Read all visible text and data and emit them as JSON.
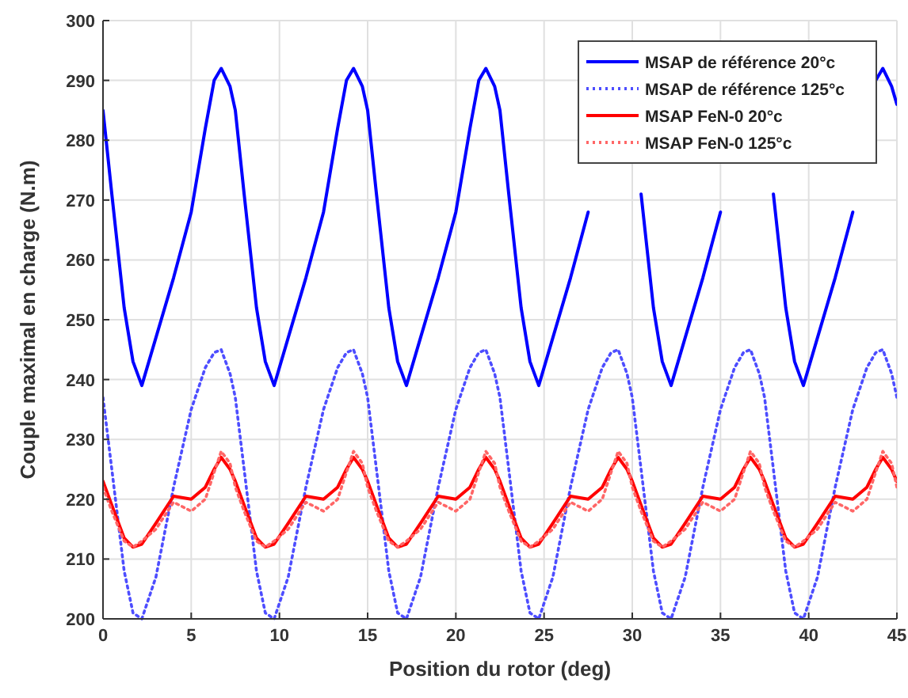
{
  "chart_data": {
    "type": "line",
    "xlabel": "Position du rotor (deg)",
    "ylabel": "Couple maximal en charge (N.m)",
    "x": [
      0,
      0.5,
      1.2,
      1.7,
      2.2,
      3,
      4,
      5,
      5.8,
      6.3,
      6.7,
      7.2,
      7.5,
      8,
      8.7,
      9.2,
      9.7,
      10.5,
      11.5,
      12.5,
      13.3,
      13.8,
      14.2,
      14.7,
      15,
      15.5,
      16.2,
      16.7,
      17.2,
      18,
      19,
      20,
      20.8,
      21.3,
      21.7,
      22.2,
      22.5,
      23,
      23.7,
      24.2,
      24.7,
      25.5,
      26.5,
      27.5,
      28.3,
      28.8,
      29.2,
      29.7,
      30,
      30.5,
      31.2,
      31.7,
      32.2,
      33,
      34,
      35,
      35.8,
      36.3,
      36.7,
      37.2,
      37.5,
      38,
      38.7,
      39.2,
      39.7,
      40.5,
      41.5,
      42.5,
      43.3,
      43.8,
      44.2,
      44.7,
      45
    ],
    "series": [
      {
        "name": "MSAP de référence 20°c",
        "color": "#0000ff",
        "line_style": "solid",
        "values": [
          285,
          271,
          252,
          243,
          239,
          247,
          257,
          268,
          282,
          290,
          292,
          289,
          285,
          271,
          252,
          243,
          239,
          247,
          257,
          268,
          282,
          290,
          292,
          289,
          285,
          271,
          252,
          243,
          239,
          247,
          257,
          268,
          282,
          290,
          292,
          289,
          285,
          271,
          252,
          243,
          239,
          247,
          257,
          268,
          null,
          null,
          null,
          null,
          null,
          271,
          252,
          243,
          239,
          247,
          257,
          268,
          null,
          null,
          null,
          null,
          null,
          271,
          252,
          243,
          239,
          247,
          257,
          268,
          null,
          290,
          292,
          289,
          286
        ]
      },
      {
        "name": "MSAP de référence 125°c",
        "color": "#4d4dff",
        "line_style": "dotted",
        "values": [
          237,
          225,
          208,
          201,
          200,
          207,
          222,
          235,
          242,
          244.5,
          245,
          241,
          237,
          225,
          208,
          201,
          200,
          207,
          222,
          235,
          242,
          244.5,
          245,
          241,
          237,
          225,
          208,
          201,
          200,
          207,
          222,
          235,
          242,
          244.5,
          245,
          241,
          237,
          225,
          208,
          201,
          200,
          207,
          222,
          235,
          242,
          244.5,
          245,
          241,
          237,
          225,
          208,
          201,
          200,
          207,
          222,
          235,
          242,
          244.5,
          245,
          241,
          237,
          225,
          208,
          201,
          200,
          207,
          222,
          235,
          242,
          244.5,
          245,
          241,
          237
        ]
      },
      {
        "name": "MSAP FeN-0 20°c",
        "color": "#ff0000",
        "line_style": "solid",
        "values": [
          223,
          219,
          213.5,
          212,
          212.5,
          216,
          220.5,
          220,
          222,
          225,
          227,
          225,
          223,
          219,
          213.5,
          212,
          212.5,
          216,
          220.5,
          220,
          222,
          225,
          227,
          225,
          223,
          219,
          213.5,
          212,
          212.5,
          216,
          220.5,
          220,
          222,
          225,
          227,
          225,
          223,
          219,
          213.5,
          212,
          212.5,
          216,
          220.5,
          220,
          222,
          225,
          227,
          225,
          223,
          219,
          213.5,
          212,
          212.5,
          216,
          220.5,
          220,
          222,
          225,
          227,
          225,
          223,
          219,
          213.5,
          212,
          212.5,
          216,
          220.5,
          220,
          222,
          225,
          227,
          225,
          223
        ]
      },
      {
        "name": "MSAP FeN-0 125°c",
        "color": "#ff6666",
        "line_style": "dotted",
        "values": [
          222,
          218,
          213,
          212,
          213,
          215,
          219.5,
          218,
          220,
          224.5,
          228,
          226,
          222,
          218,
          213,
          212,
          213,
          215,
          219.5,
          218,
          220,
          224.5,
          228,
          226,
          222,
          218,
          213,
          212,
          213,
          215,
          219.5,
          218,
          220,
          224.5,
          228,
          226,
          222,
          218,
          213,
          212,
          213,
          215,
          219.5,
          218,
          220,
          224.5,
          228,
          226,
          222,
          218,
          213,
          212,
          213,
          215,
          219.5,
          218,
          220,
          224.5,
          228,
          226,
          222,
          218,
          213,
          212,
          213,
          215,
          219.5,
          218,
          220,
          224.5,
          228,
          226,
          222
        ]
      }
    ],
    "xlim": [
      0,
      45
    ],
    "xticks": [
      0,
      5,
      10,
      15,
      20,
      25,
      30,
      35,
      40,
      45
    ],
    "ylim": [
      200,
      300
    ],
    "yticks": [
      200,
      210,
      220,
      230,
      240,
      250,
      260,
      270,
      280,
      290,
      300
    ],
    "grid": true,
    "legend": "top right"
  }
}
